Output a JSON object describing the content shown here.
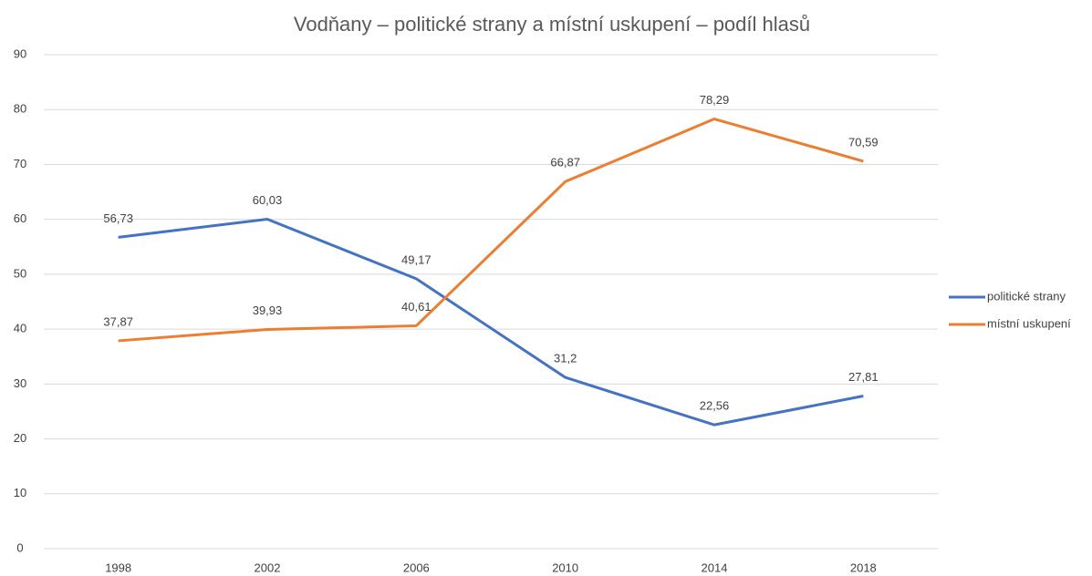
{
  "chart_data": {
    "type": "line",
    "title": "Vodňany – politické strany a místní uskupení – podíl hlasů",
    "categories": [
      "1998",
      "2002",
      "2006",
      "2010",
      "2014",
      "2018"
    ],
    "series": [
      {
        "name": "politické strany",
        "color": "#4472c4",
        "values": [
          56.73,
          60.03,
          49.17,
          31.2,
          22.56,
          27.81
        ],
        "value_labels": [
          "56,73",
          "60,03",
          "49,17",
          "31,2",
          "22,56",
          "27,81"
        ]
      },
      {
        "name": "místní uskupení",
        "color": "#ed7d31",
        "values": [
          37.87,
          39.93,
          40.61,
          66.87,
          78.29,
          70.59
        ],
        "value_labels": [
          "37,87",
          "39,93",
          "40,61",
          "66,87",
          "78,29",
          "70,59"
        ]
      }
    ],
    "ylim": [
      0,
      90
    ],
    "yticks": [
      0,
      10,
      20,
      30,
      40,
      50,
      60,
      70,
      80,
      90
    ],
    "grid": true,
    "legend": "right"
  }
}
